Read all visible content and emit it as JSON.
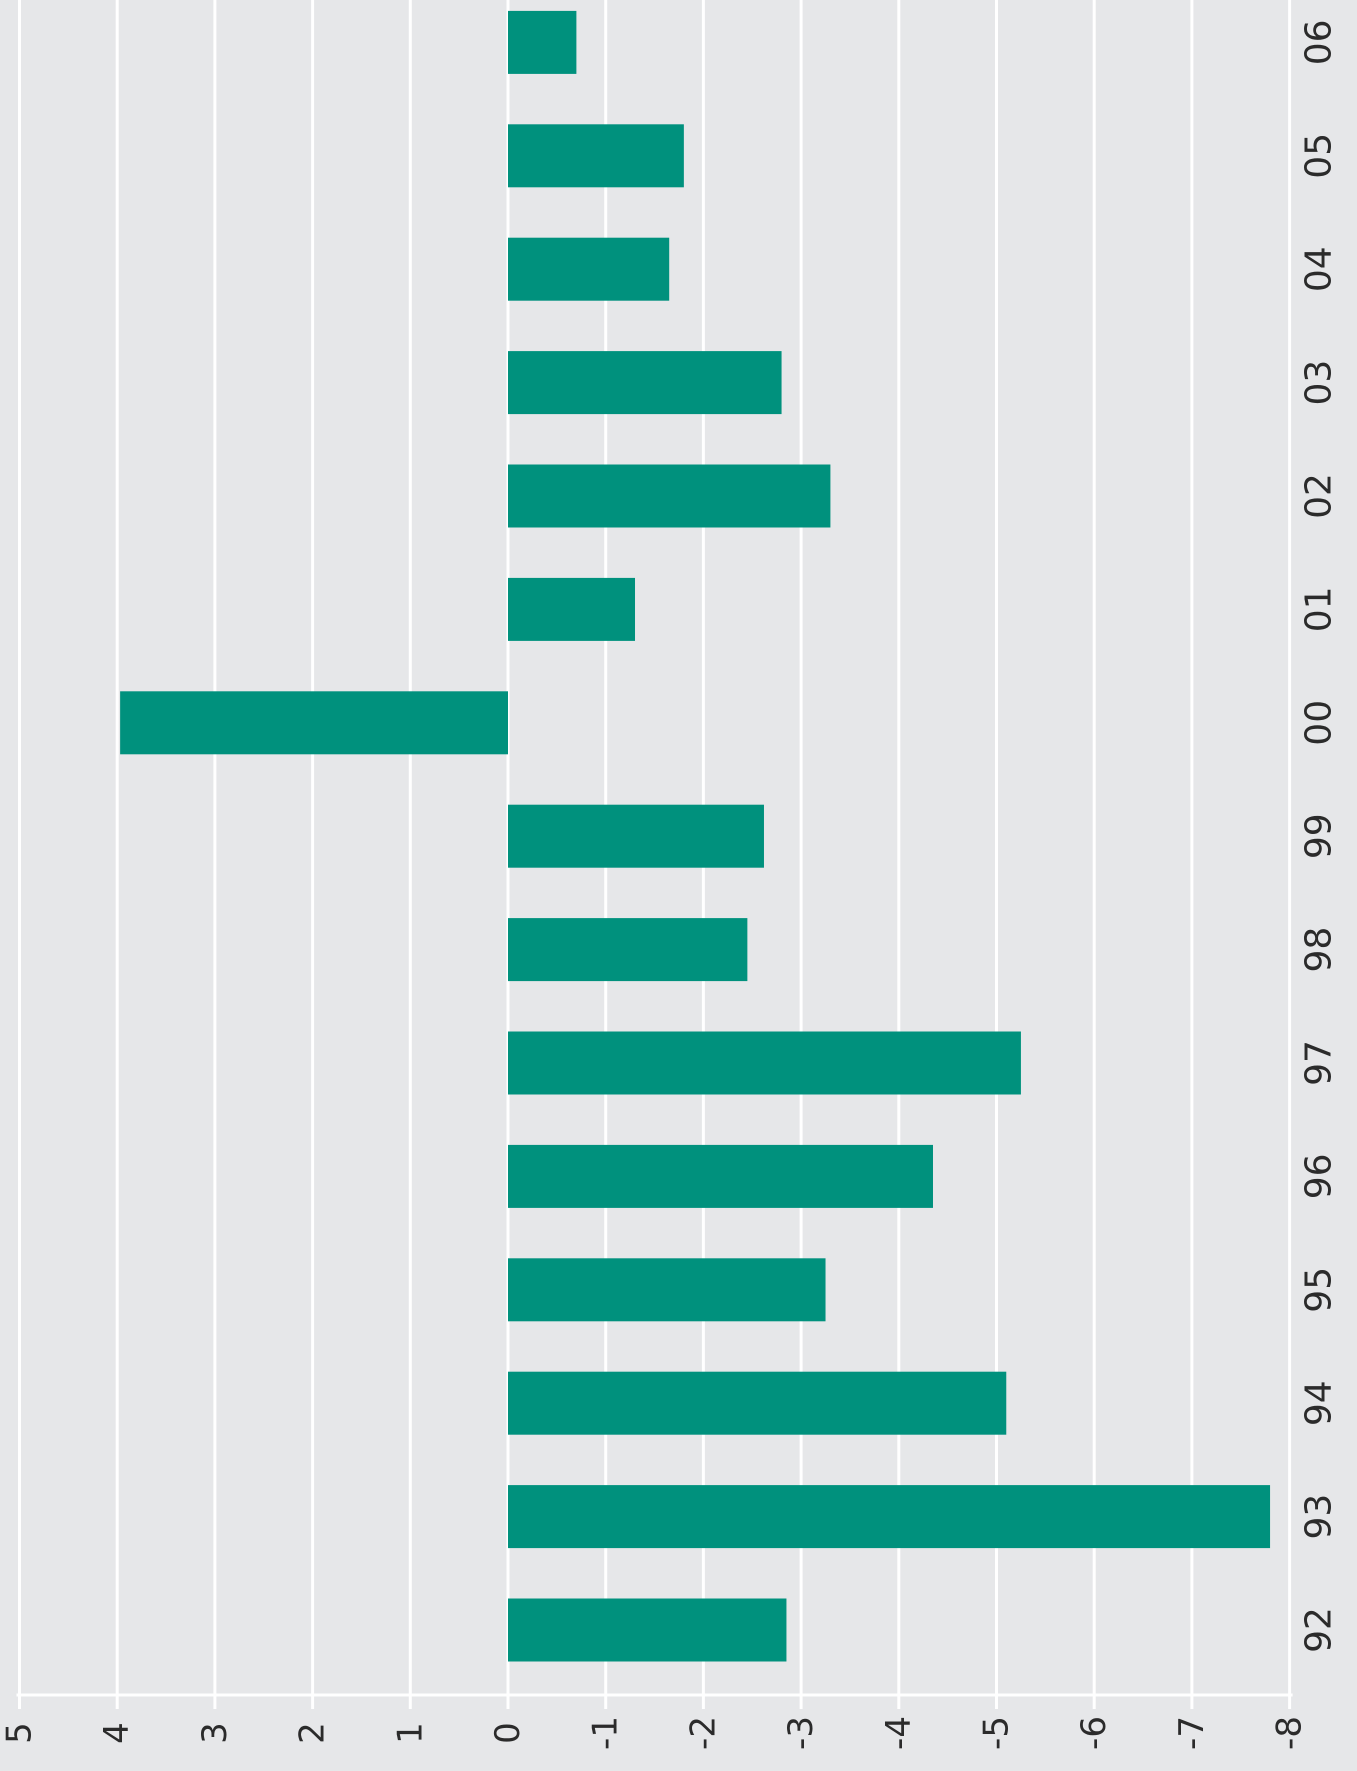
{
  "chart_data": {
    "type": "bar",
    "orientation": "horizontal",
    "categories": [
      "92",
      "93",
      "94",
      "95",
      "96",
      "97",
      "98",
      "99",
      "00",
      "01",
      "02",
      "03",
      "04",
      "05",
      "06"
    ],
    "values": [
      -2.85,
      -7.8,
      -5.1,
      -3.25,
      -4.35,
      -5.25,
      -2.45,
      -2.62,
      3.97,
      -1.3,
      -3.3,
      -2.8,
      -1.65,
      -1.8,
      -0.7
    ],
    "value_axis": {
      "ticks": [
        "5",
        "4",
        "3",
        "2",
        "1",
        "0",
        "-1",
        "-2",
        "-3",
        "-4",
        "-5",
        "-6",
        "-7",
        "-8"
      ],
      "range": [
        5,
        -8
      ]
    },
    "title": "",
    "xlabel": "",
    "ylabel": "",
    "grid": true,
    "legend": "none",
    "colors": {
      "bar": "#00917d",
      "background": "#e6e7e9",
      "grid": "#ffffff",
      "axis": "#ffffff"
    }
  }
}
